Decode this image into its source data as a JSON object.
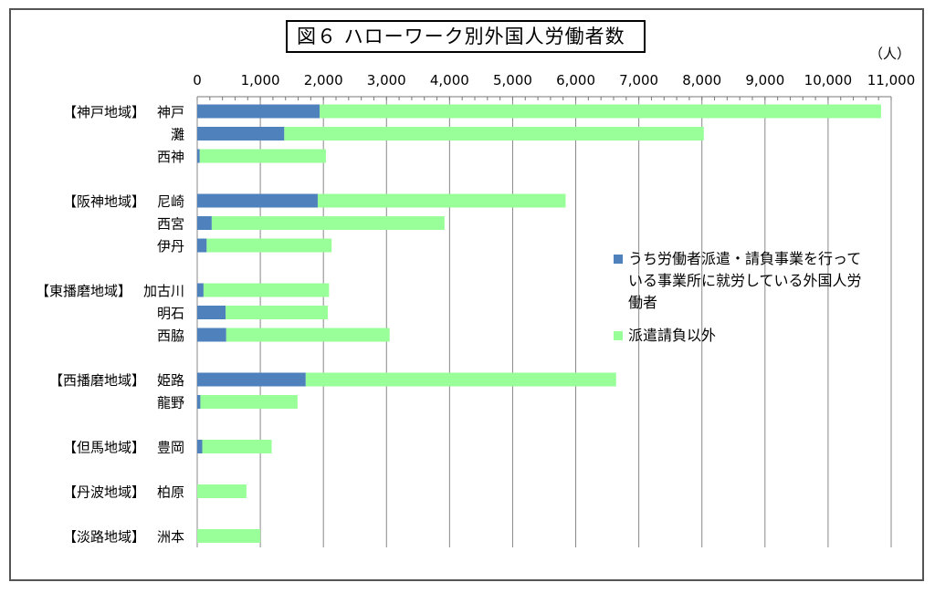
{
  "title": "図６ ハローワーク別外国人労働者数",
  "unit": "（人）",
  "colors": {
    "dispatch": "#4f81bd",
    "other": "#99ff99",
    "grid": "#888888"
  },
  "chart_data": {
    "type": "bar",
    "orientation": "horizontal",
    "stacked": true,
    "xlim": [
      0,
      11000
    ],
    "xticks": [
      0,
      1000,
      2000,
      3000,
      4000,
      5000,
      6000,
      7000,
      8000,
      9000,
      10000,
      11000
    ],
    "xtick_labels": [
      "0",
      "1,000",
      "2,000",
      "3,000",
      "4,000",
      "5,000",
      "6,000",
      "7,000",
      "8,000",
      "9,000",
      "10,000",
      "11,000"
    ],
    "grid": true,
    "legend_position": "right",
    "categories": [
      {
        "region": "【神戸地域】",
        "name": "神戸",
        "group": 0
      },
      {
        "region": "",
        "name": "灘",
        "group": 0
      },
      {
        "region": "",
        "name": "西神",
        "group": 0
      },
      {
        "region": "【阪神地域】",
        "name": "尼崎",
        "group": 1
      },
      {
        "region": "",
        "name": "西宮",
        "group": 1
      },
      {
        "region": "",
        "name": "伊丹",
        "group": 1
      },
      {
        "region": "【東播磨地域】",
        "name": "加古川",
        "group": 2
      },
      {
        "region": "",
        "name": "明石",
        "group": 2
      },
      {
        "region": "",
        "name": "西脇",
        "group": 2
      },
      {
        "region": "【西播磨地域】",
        "name": "姫路",
        "group": 3
      },
      {
        "region": "",
        "name": "龍野",
        "group": 3
      },
      {
        "region": "【但馬地域】",
        "name": "豊岡",
        "group": 4
      },
      {
        "region": "【丹波地域】",
        "name": "柏原",
        "group": 5
      },
      {
        "region": "【淡路地域】",
        "name": "洲本",
        "group": 6
      }
    ],
    "series": [
      {
        "name": "うち労働者派遣・請負事業を行っている事業所に就労している外国人労働者",
        "values": [
          1940,
          1380,
          40,
          1910,
          230,
          150,
          100,
          450,
          460,
          1720,
          50,
          80,
          0,
          0
        ]
      },
      {
        "name": "派遣請負以外",
        "values": [
          8900,
          6650,
          2000,
          3930,
          3690,
          1980,
          1990,
          1620,
          2590,
          4920,
          1540,
          1100,
          780,
          1000
        ]
      }
    ],
    "legend_lines": [
      [
        "うち労働者派遣・請負事業を行って",
        "いる事業所に就労している外国人労",
        "働者"
      ],
      [
        "派遣請負以外"
      ]
    ]
  }
}
